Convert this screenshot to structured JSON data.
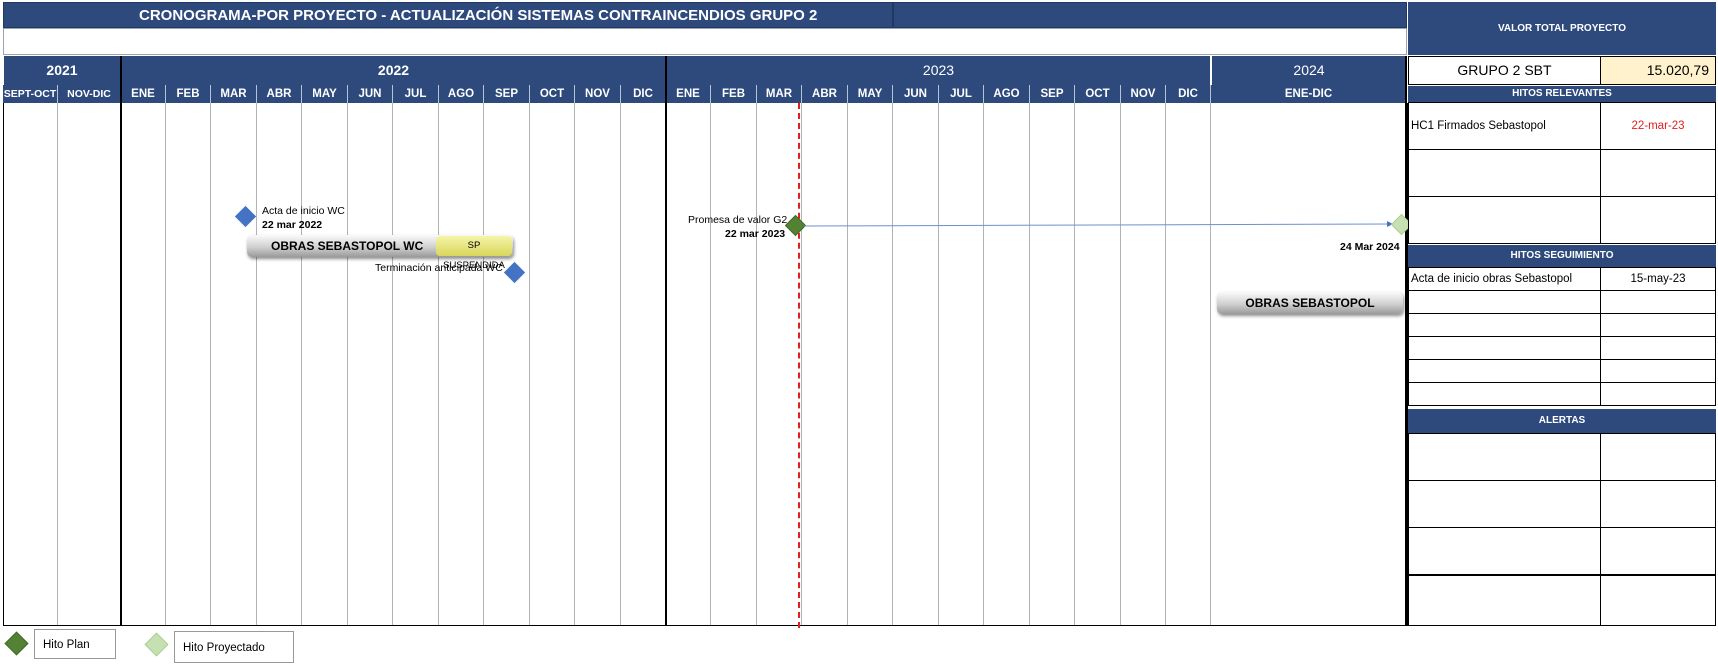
{
  "title": "CRONOGRAMA-POR PROYECTO  - ACTUALIZACIÓN SISTEMAS CONTRAINCENDIOS GRUPO 2",
  "years": [
    "2021",
    "2022",
    "2023",
    "2024"
  ],
  "months": [
    "SEPT-OCT",
    "NOV-DIC",
    "ENE",
    "FEB",
    "MAR",
    "ABR",
    "MAY",
    "JUN",
    "JUL",
    "AGO",
    "SEP",
    "OCT",
    "NOV",
    "DIC",
    "ENE",
    "FEB",
    "MAR",
    "ABR",
    "MAY",
    "JUN",
    "JUL",
    "AGO",
    "SEP",
    "OCT",
    "NOV",
    "DIC",
    "ENE-DIC"
  ],
  "milestones": {
    "acta_inicio_label": "Acta de inicio WC",
    "acta_inicio_date": "22 mar 2022",
    "terminacion_label": "Terminación anticipada WC",
    "promesa_label": "Promesa de valor G2",
    "promesa_date": "22 mar 2023",
    "proyectado_date": "24 Mar  2024"
  },
  "bars": {
    "sebastopol_wc": "OBRAS SEBASTOPOL WC",
    "suspendida": "SP SUSPENDIDA",
    "sebastopol": "OBRAS SEBASTOPOL"
  },
  "panel": {
    "valor_total_header": "VALOR TOTAL PROYECTO",
    "grupo_label": "GRUPO 2 SBT",
    "grupo_value": "15.020,79",
    "hitos_relevantes_header": "HITOS RELEVANTES",
    "hitos_relevantes": [
      {
        "label": "HC1 Firmados Sebastopol",
        "date": "22-mar-23"
      }
    ],
    "hitos_seguimiento_header": "HITOS SEGUIMIENTO",
    "hitos_seguimiento": [
      {
        "label": "Acta de inicio obras Sebastopol",
        "date": "15-may-23"
      }
    ],
    "alertas_header": "ALERTAS"
  },
  "legend": {
    "plan": "Hito Plan",
    "proyectado": "Hito Proyectado"
  },
  "colors": {
    "header_navy": "#2e4a7d",
    "today_line": "#e02020",
    "hito_plan": "#548235",
    "hito_proyectado": "#c6e0b4",
    "milestone_blue": "#4472c4",
    "highlight_value": "#fff2cc",
    "date_red": "#e02020"
  }
}
